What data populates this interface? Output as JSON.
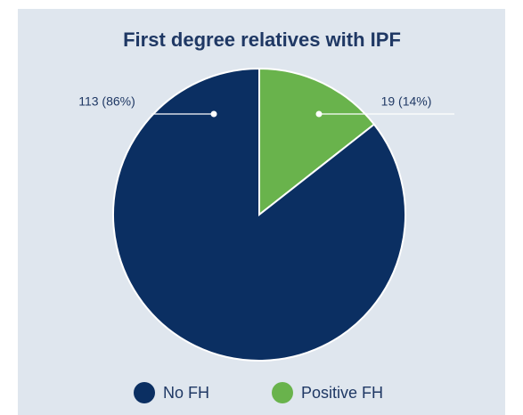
{
  "chart_data": {
    "type": "pie",
    "title": "First degree relatives with IPF",
    "categories": [
      "No FH",
      "Positive FH"
    ],
    "values": [
      113,
      19
    ],
    "value_labels": [
      "113 (86%)",
      "19 (14%)"
    ],
    "colors": [
      "#0b2f62",
      "#69b34c"
    ],
    "legend": "bottom"
  }
}
